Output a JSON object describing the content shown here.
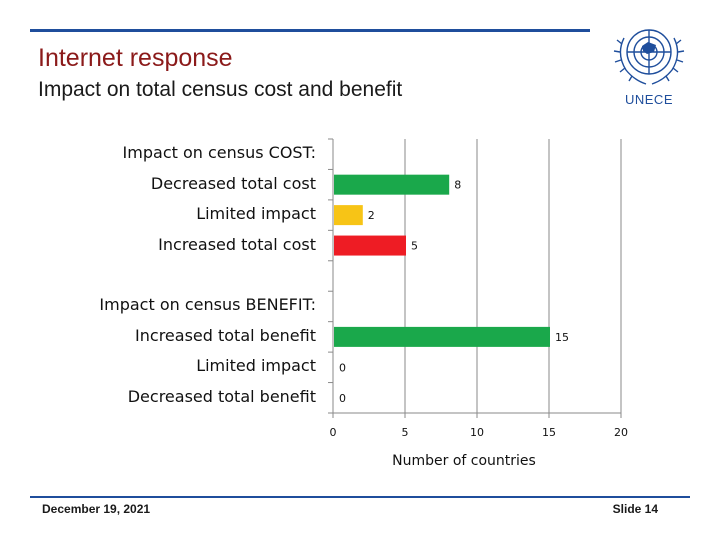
{
  "slide": {
    "title": "Internet response",
    "subtitle": "Impact on total census cost and benefit",
    "logo_text": "UNECE",
    "date": "December 19, 2021",
    "slide_number": "Slide 14"
  },
  "colors": {
    "green": "#1aa84b",
    "yellow": "#f7c416",
    "red": "#ee1c24",
    "accent": "#1f4e9c",
    "title": "#8b1a1a"
  },
  "chart_data": {
    "type": "bar",
    "orientation": "horizontal",
    "categories": [
      "Impact on census COST:",
      "Decreased total cost",
      "Limited impact",
      "Increased total cost",
      "",
      "Impact on census BENEFIT:",
      "Increased total benefit",
      "Limited impact",
      "Decreased total benefit"
    ],
    "values": [
      null,
      8,
      2,
      5,
      null,
      null,
      15,
      0,
      0
    ],
    "bar_colors": [
      "",
      "#1aa84b",
      "#f7c416",
      "#ee1c24",
      "",
      "",
      "#1aa84b",
      "#f7c416",
      "#ee1c24"
    ],
    "data_labels": [
      "",
      "8",
      "2",
      "5",
      "",
      "",
      "15",
      "0",
      "0"
    ],
    "xlabel": "Number of countries",
    "xlim": [
      0,
      20
    ],
    "xticks": [
      0,
      5,
      10,
      15,
      20
    ],
    "grid": true
  }
}
